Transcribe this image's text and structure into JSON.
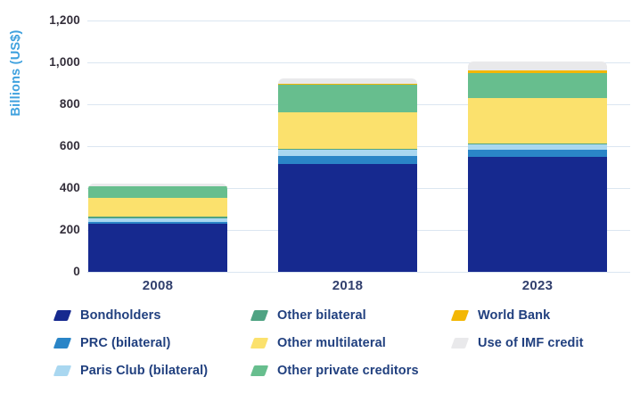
{
  "chart_data": {
    "type": "bar",
    "stacked": true,
    "ylabel": "Billions (US$)",
    "categories": [
      "2008",
      "2018",
      "2023"
    ],
    "ylim": [
      0,
      1200
    ],
    "ytick_interval": 200,
    "yticks": [
      {
        "value": 0,
        "label": "0"
      },
      {
        "value": 200,
        "label": "200"
      },
      {
        "value": 400,
        "label": "400"
      },
      {
        "value": 600,
        "label": "600"
      },
      {
        "value": 800,
        "label": "800"
      },
      {
        "value": 1000,
        "label": "1,000"
      },
      {
        "value": 1200,
        "label": "1,200"
      }
    ],
    "grid": true,
    "legend_position": "bottom",
    "series": [
      {
        "name": "Bondholders",
        "color": "#16298f",
        "values": [
          230,
          515,
          550
        ]
      },
      {
        "name": "PRC (bilateral)",
        "color": "#2a85c7",
        "values": [
          7,
          38,
          33
        ]
      },
      {
        "name": "Paris Club (bilateral)",
        "color": "#a9d7f0",
        "values": [
          17,
          29,
          24
        ]
      },
      {
        "name": "Other bilateral",
        "color": "#4fa383",
        "values": [
          9,
          5,
          7
        ]
      },
      {
        "name": "Other multilateral",
        "color": "#fbe16d",
        "values": [
          92,
          175,
          215
        ]
      },
      {
        "name": "Other private creditors",
        "color": "#67be8e",
        "values": [
          52,
          132,
          122
        ]
      },
      {
        "name": "World Bank",
        "color": "#f3b705",
        "values": [
          2,
          4,
          10
        ]
      },
      {
        "name": "Use of IMF credit",
        "color": "#e9e9eb",
        "values": [
          12,
          26,
          43
        ]
      }
    ],
    "totals_estimated": [
      421,
      924,
      1004
    ],
    "legend_columns": [
      [
        0,
        1,
        2
      ],
      [
        3,
        4,
        5
      ],
      [
        6,
        7
      ]
    ]
  },
  "style": {
    "gridline_color": "#dbe6f1",
    "axis_label_color": "#3fa1de",
    "tick_label_color": "#332e3a",
    "category_label_color": "#32406e",
    "legend_text_color": "#21407f"
  }
}
